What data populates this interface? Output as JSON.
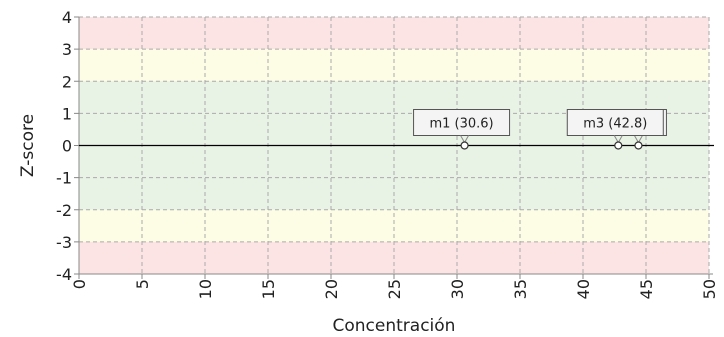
{
  "chart_data": {
    "type": "scatter",
    "title": "",
    "xlabel": "Concentración",
    "ylabel": "Z-score",
    "xlim": [
      0,
      50
    ],
    "ylim": [
      -4,
      4
    ],
    "x_ticks": [
      0,
      5,
      10,
      15,
      20,
      25,
      30,
      35,
      40,
      45,
      50
    ],
    "y_ticks": [
      -4,
      -3,
      -2,
      -1,
      0,
      1,
      2,
      3,
      4
    ],
    "grid": true,
    "zero_line": true,
    "bands": [
      {
        "from": 3,
        "to": 4,
        "color": "#fce4e4"
      },
      {
        "from": 2,
        "to": 3,
        "color": "#fdfce4"
      },
      {
        "from": -2,
        "to": 2,
        "color": "#e8f2e5"
      },
      {
        "from": -3,
        "to": -2,
        "color": "#fdfce4"
      },
      {
        "from": -4,
        "to": -3,
        "color": "#fce4e4"
      }
    ],
    "points": [
      {
        "x": 30.6,
        "y": 0,
        "label": "m1 (30.6)"
      },
      {
        "x": 42.8,
        "y": 0,
        "label": "m3 (42.8)"
      },
      {
        "x": 44.4,
        "y": 0,
        "label": ")"
      }
    ]
  }
}
